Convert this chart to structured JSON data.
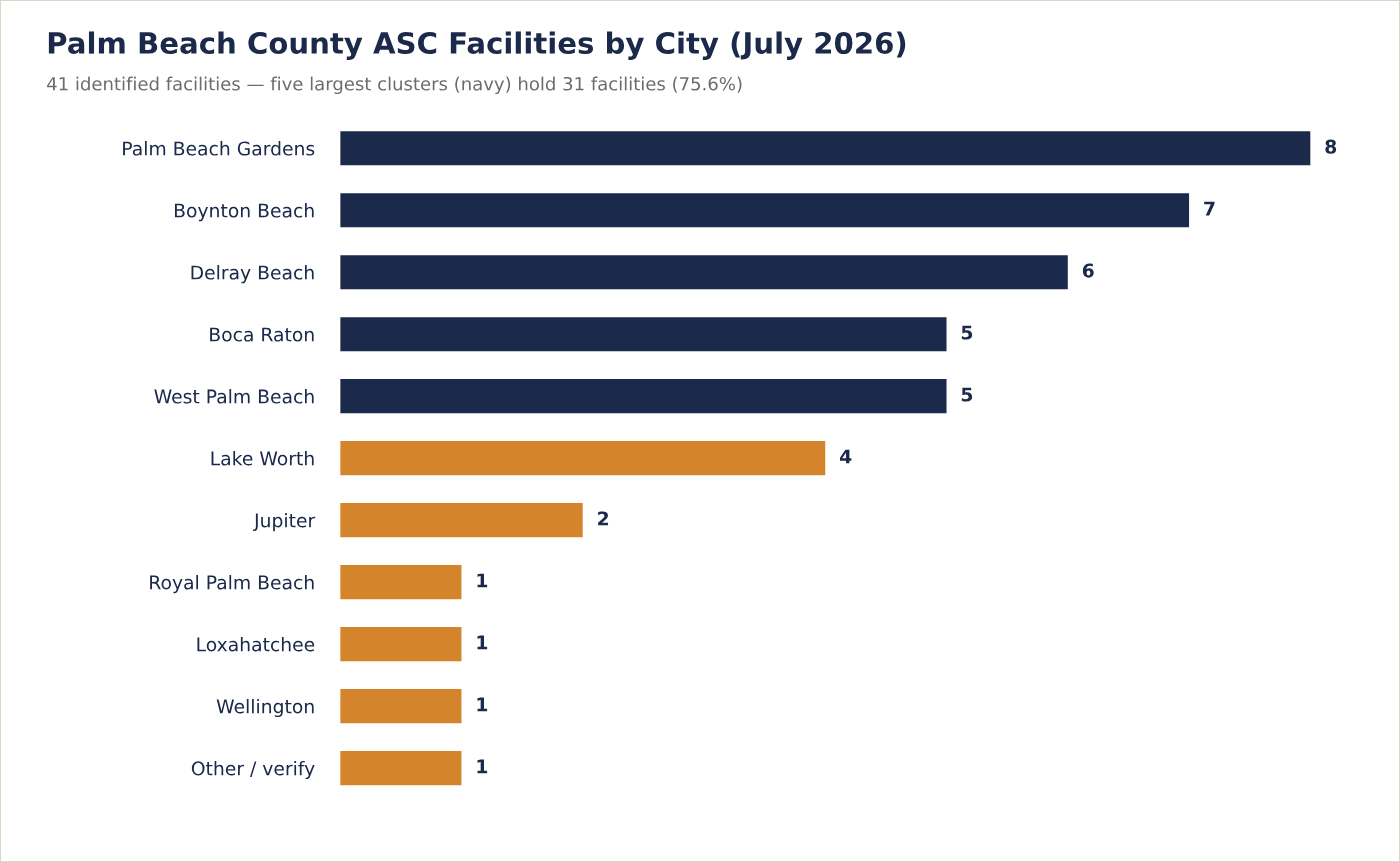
{
  "chart_data": {
    "type": "bar",
    "orientation": "horizontal",
    "title": "Palm Beach County ASC Facilities by City (July 2026)",
    "subtitle": "41 identified facilities — five largest clusters (navy) hold 31 facilities (75.6%)",
    "categories": [
      "Palm Beach Gardens",
      "Boynton Beach",
      "Delray Beach",
      "Boca Raton",
      "West Palm Beach",
      "Lake Worth",
      "Jupiter",
      "Royal Palm Beach",
      "Loxahatchee",
      "Wellington",
      "Other / verify"
    ],
    "values": [
      8,
      7,
      6,
      5,
      5,
      4,
      2,
      1,
      1,
      1,
      1
    ],
    "colors": [
      "#1b2a4a",
      "#1b2a4a",
      "#1b2a4a",
      "#1b2a4a",
      "#1b2a4a",
      "#d4852b",
      "#d4852b",
      "#d4852b",
      "#d4852b",
      "#d4852b",
      "#d4852b"
    ],
    "data_labels": true,
    "grid": false,
    "legend": false
  }
}
